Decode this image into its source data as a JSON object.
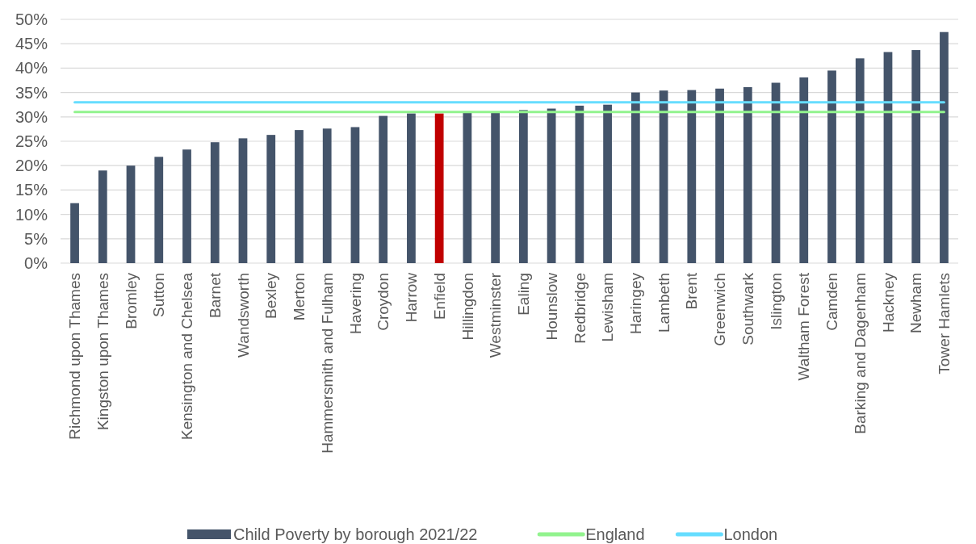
{
  "chart_data": {
    "type": "bar",
    "categories": [
      "Richmond upon Thames",
      "Kingston upon Thames",
      "Bromley",
      "Sutton",
      "Kensington and Chelsea",
      "Barnet",
      "Wandsworth",
      "Bexley",
      "Merton",
      "Hammersmith and Fulham",
      "Havering",
      "Croydon",
      "Harrow",
      "Enfield",
      "Hillingdon",
      "Westminster",
      "Ealing",
      "Hounslow",
      "Redbridge",
      "Lewisham",
      "Haringey",
      "Lambeth",
      "Brent",
      "Greenwich",
      "Southwark",
      "Islington",
      "Waltham Forest",
      "Camden",
      "Barking and Dagenham",
      "Hackney",
      "Newham",
      "Tower Hamlets"
    ],
    "series": [
      {
        "name": "Child Poverty by borough 2021/22",
        "color": "#44546a",
        "colors": [
          "#44546a",
          "#44546a",
          "#44546a",
          "#44546a",
          "#44546a",
          "#44546a",
          "#44546a",
          "#44546a",
          "#44546a",
          "#44546a",
          "#44546a",
          "#44546a",
          "#44546a",
          "#c00000",
          "#44546a",
          "#44546a",
          "#44546a",
          "#44546a",
          "#44546a",
          "#44546a",
          "#44546a",
          "#44546a",
          "#44546a",
          "#44546a",
          "#44546a",
          "#44546a",
          "#44546a",
          "#44546a",
          "#44546a",
          "#44546a",
          "#44546a",
          "#44546a"
        ],
        "values": [
          12.3,
          19.0,
          20.0,
          21.8,
          23.3,
          24.8,
          25.6,
          26.3,
          27.3,
          27.6,
          27.9,
          30.2,
          30.7,
          30.7,
          30.8,
          30.9,
          31.4,
          31.7,
          32.3,
          32.5,
          35.0,
          35.4,
          35.5,
          35.8,
          36.1,
          37.0,
          38.1,
          39.5,
          42.0,
          43.3,
          43.7,
          47.4
        ]
      },
      {
        "name": "England",
        "type": "line",
        "color": "#92f38e",
        "values": [
          31,
          31,
          31,
          31,
          31,
          31,
          31,
          31,
          31,
          31,
          31,
          31,
          31,
          31,
          31,
          31,
          31,
          31,
          31,
          31,
          31,
          31,
          31,
          31,
          31,
          31,
          31,
          31,
          31,
          31,
          31,
          31
        ]
      },
      {
        "name": "London",
        "type": "line",
        "color": "#66ddff",
        "values": [
          33,
          33,
          33,
          33,
          33,
          33,
          33,
          33,
          33,
          33,
          33,
          33,
          33,
          33,
          33,
          33,
          33,
          33,
          33,
          33,
          33,
          33,
          33,
          33,
          33,
          33,
          33,
          33,
          33,
          33,
          33,
          33
        ]
      }
    ],
    "ylim": [
      0,
      50
    ],
    "yticks": [
      {
        "value": 0,
        "label": "0%"
      },
      {
        "value": 5,
        "label": "5%"
      },
      {
        "value": 10,
        "label": "10%"
      },
      {
        "value": 15,
        "label": "15%"
      },
      {
        "value": 20,
        "label": "20%"
      },
      {
        "value": 25,
        "label": "25%"
      },
      {
        "value": 30,
        "label": "30%"
      },
      {
        "value": 35,
        "label": "35%"
      },
      {
        "value": 40,
        "label": "40%"
      },
      {
        "value": 45,
        "label": "45%"
      },
      {
        "value": 50,
        "label": "50%"
      }
    ],
    "grid": "y",
    "legend": "bottom"
  }
}
